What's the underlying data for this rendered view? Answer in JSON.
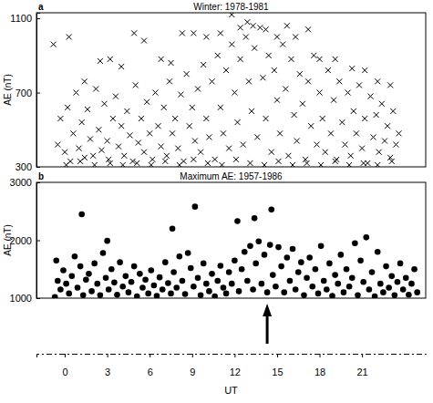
{
  "chart_data": [
    {
      "type": "scatter",
      "panel": "a",
      "title": "Winter: 1978-1981",
      "ylabel": "AE (nT)",
      "marker": "x",
      "color": "#000000",
      "xlim": [
        -2,
        25.5
      ],
      "ylim": [
        300,
        1130
      ],
      "yticks": [
        300,
        700,
        1100
      ],
      "tick_labels": "y",
      "x": [
        -0.8,
        0.3,
        1.4,
        2.5,
        3.2,
        4.0,
        4.9,
        5.6,
        6.8,
        7.5,
        8.3,
        9.1,
        10.0,
        11.0,
        11.8,
        12.4,
        12.9,
        13.3,
        14.2,
        15.0,
        15.7,
        16.3,
        17.2,
        18.0,
        19.1,
        20.3,
        21.2,
        22.1,
        23.0,
        -0.5,
        -0.3,
        0,
        0.2,
        0.4,
        0.6,
        0.8,
        1.0,
        1.2,
        1.4,
        1.6,
        1.8,
        2.0,
        2.2,
        2.4,
        2.6,
        2.8,
        3.0,
        3.2,
        3.4,
        3.6,
        3.8,
        4.0,
        4.2,
        4.4,
        4.6,
        4.8,
        5.0,
        5.2,
        5.4,
        5.6,
        5.8,
        6.0,
        6.2,
        6.4,
        6.6,
        6.8,
        7.0,
        7.2,
        7.4,
        7.6,
        7.8,
        8.0,
        8.2,
        8.4,
        8.6,
        8.8,
        9.0,
        9.2,
        9.4,
        9.6,
        9.8,
        10.0,
        10.2,
        10.4,
        10.6,
        10.8,
        11.0,
        11.2,
        11.4,
        11.6,
        11.8,
        12.0,
        12.2,
        12.4,
        12.6,
        12.8,
        13.0,
        13.2,
        13.4,
        13.6,
        13.8,
        14.0,
        14.2,
        14.4,
        14.6,
        14.8,
        15.0,
        15.2,
        15.4,
        15.6,
        15.8,
        16.0,
        16.2,
        16.4,
        16.6,
        16.8,
        17.0,
        17.2,
        17.4,
        17.6,
        17.8,
        18.0,
        18.2,
        18.4,
        18.6,
        18.8,
        19.0,
        19.2,
        19.4,
        19.6,
        19.8,
        20.0,
        20.2,
        20.4,
        20.6,
        20.8,
        21.0,
        21.2,
        21.4,
        21.6,
        21.8,
        22.0,
        22.2,
        22.4,
        22.6,
        22.8,
        23.0,
        23.2,
        23.4,
        23.6,
        0.1,
        1.1,
        2.1,
        3.1,
        4.1,
        5.1,
        6.1,
        7.1,
        8.1,
        9.1,
        10.1,
        11.1,
        12.1,
        13.1,
        14.1,
        15.1,
        16.1,
        17.1,
        18.1,
        19.1,
        20.1,
        21.1,
        22.1,
        23.1
      ],
      "values": [
        960,
        1000,
        760,
        870,
        880,
        840,
        1020,
        980,
        880,
        860,
        1020,
        1020,
        1000,
        1020,
        1120,
        1050,
        1080,
        1060,
        1040,
        1000,
        1060,
        1000,
        1040,
        880,
        880,
        830,
        820,
        760,
        740,
        420,
        560,
        380,
        620,
        330,
        480,
        700,
        400,
        540,
        350,
        610,
        450,
        360,
        720,
        500,
        390,
        640,
        440,
        320,
        560,
        680,
        410,
        520,
        360,
        600,
        470,
        330,
        740,
        430,
        560,
        380,
        650,
        480,
        340,
        700,
        520,
        410,
        620,
        360,
        760,
        480,
        560,
        400,
        690,
        330,
        800,
        520,
        620,
        440,
        720,
        380,
        850,
        560,
        460,
        760,
        340,
        900,
        620,
        480,
        820,
        400,
        960,
        700,
        540,
        880,
        420,
        1000,
        760,
        600,
        940,
        460,
        1050,
        780,
        560,
        900,
        380,
        820,
        660,
        480,
        960,
        720,
        360,
        880,
        580,
        440,
        800,
        640,
        340,
        760,
        520,
        900,
        420,
        700,
        560,
        380,
        820,
        480,
        660,
        340,
        760,
        540,
        420,
        700,
        360,
        600,
        480,
        740,
        400,
        560,
        320,
        680,
        460,
        580,
        380,
        640,
        440,
        520,
        350,
        600,
        420,
        480,
        310,
        330,
        310,
        340,
        310,
        320,
        310,
        330,
        310,
        340,
        320,
        310,
        340,
        320,
        310,
        330,
        310,
        320,
        310,
        330,
        310,
        320,
        310,
        330
      ]
    },
    {
      "type": "scatter",
      "panel": "b",
      "title": "Maximum AE: 1957-1986",
      "ylabel": "AE (nT)",
      "xlabel": "UT",
      "marker": "circle",
      "color": "#000000",
      "xlim": [
        -2,
        25.5
      ],
      "xticks": [
        0,
        3,
        6,
        9,
        12,
        15,
        18,
        21
      ],
      "ylim": [
        1000,
        3000
      ],
      "yticks": [
        1000,
        2000,
        3000
      ],
      "annotations": [
        {
          "type": "arrow",
          "x": 14.3
        }
      ],
      "x": [
        1.2,
        7.6,
        9.2,
        12.2,
        13.4,
        14.6,
        20.5,
        21.3,
        3.0,
        8.7,
        -0.7,
        -0.6,
        -0.5,
        -0.3,
        -0.1,
        0.1,
        0.3,
        0.5,
        0.7,
        0.9,
        1.1,
        1.3,
        1.5,
        1.7,
        1.9,
        2.1,
        2.3,
        2.5,
        2.7,
        2.9,
        3.1,
        3.3,
        3.5,
        3.7,
        3.9,
        4.1,
        4.3,
        4.5,
        4.7,
        4.9,
        5.1,
        5.3,
        5.5,
        5.7,
        5.9,
        6.1,
        6.3,
        6.5,
        6.7,
        6.9,
        7.1,
        7.3,
        7.5,
        7.7,
        7.9,
        8.1,
        8.3,
        8.5,
        8.9,
        9.1,
        9.4,
        9.6,
        9.8,
        10.0,
        10.2,
        10.4,
        10.6,
        10.8,
        11.0,
        11.2,
        11.4,
        11.6,
        11.8,
        12.0,
        12.3,
        12.5,
        12.7,
        12.9,
        13.1,
        13.3,
        13.5,
        13.7,
        13.9,
        14.1,
        14.3,
        14.5,
        14.7,
        14.9,
        15.1,
        15.3,
        15.5,
        15.7,
        15.9,
        16.1,
        16.3,
        16.5,
        16.7,
        16.9,
        17.1,
        17.3,
        17.5,
        17.7,
        17.9,
        18.1,
        18.3,
        18.5,
        18.7,
        18.9,
        19.1,
        19.3,
        19.5,
        19.7,
        19.9,
        20.1,
        20.3,
        20.7,
        20.9,
        21.1,
        21.5,
        21.7,
        21.9,
        22.1,
        22.3,
        22.5,
        22.7,
        22.9,
        23.1,
        23.3,
        23.5,
        23.7,
        23.9,
        24.1,
        24.3,
        24.5,
        24.7,
        24.9
      ],
      "values": [
        2450,
        2200,
        2580,
        2330,
        2380,
        2530,
        1950,
        2050,
        1990,
        1780,
        1020,
        1650,
        1300,
        1150,
        1480,
        1250,
        1080,
        1380,
        1720,
        1180,
        1550,
        1050,
        1320,
        1420,
        1120,
        1600,
        1250,
        1050,
        1780,
        1350,
        1150,
        1500,
        1270,
        1060,
        1620,
        1200,
        1380,
        1100,
        1280,
        1550,
        1030,
        1420,
        1180,
        1320,
        1080,
        1480,
        1220,
        1040,
        1360,
        1150,
        1620,
        1260,
        1080,
        1450,
        1180,
        1720,
        1300,
        1070,
        1520,
        1200,
        1350,
        1050,
        1600,
        1250,
        1120,
        1420,
        1030,
        1300,
        1560,
        1180,
        1080,
        1450,
        1250,
        1650,
        1120,
        1500,
        1800,
        1300,
        1900,
        1150,
        1600,
        1980,
        1250,
        1750,
        1100,
        1920,
        1400,
        1200,
        1880,
        1550,
        1100,
        1700,
        1300,
        1850,
        1150,
        1450,
        1620,
        1050,
        1350,
        1700,
        1200,
        1500,
        1080,
        1900,
        1300,
        1150,
        1600,
        1040,
        1400,
        1250,
        1750,
        1100,
        1500,
        1200,
        1350,
        1050,
        1650,
        1280,
        1150,
        1450,
        1030,
        1800,
        1250,
        1100,
        1550,
        1180,
        1380,
        1050,
        1280,
        1600,
        1150,
        1350,
        1060,
        1250,
        1500,
        1100
      ]
    }
  ]
}
